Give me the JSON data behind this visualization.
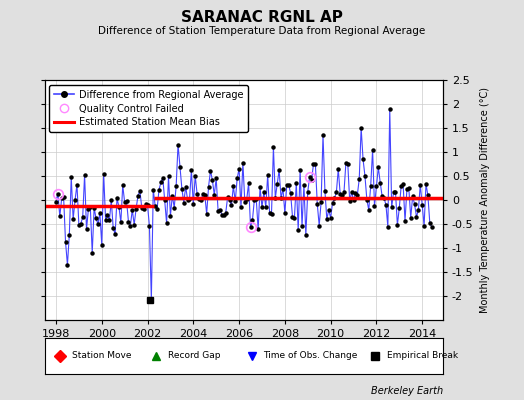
{
  "title": "SARANAC RGNL AP",
  "subtitle": "Difference of Station Temperature Data from Regional Average",
  "ylabel": "Monthly Temperature Anomaly Difference (°C)",
  "xlabel_years": [
    1998,
    2000,
    2002,
    2004,
    2006,
    2008,
    2010,
    2012,
    2014
  ],
  "ylim": [
    -2.5,
    2.5
  ],
  "xlim": [
    1997.5,
    2014.9
  ],
  "yticks": [
    -2,
    -1.5,
    -1,
    -0.5,
    0,
    0.5,
    1,
    1.5,
    2,
    2.5
  ],
  "bias_before": -0.12,
  "bias_after": 0.05,
  "bias_break_year": 2002.3,
  "empirical_break_x": 2002.1,
  "empirical_break_y": -2.08,
  "background_color": "#e0e0e0",
  "plot_bg_color": "#ffffff",
  "line_color": "#4444ff",
  "bias_color": "#ff0000",
  "marker_color": "#000000",
  "qc_color": "#ff88ff",
  "attribution": "Berkeley Earth",
  "grid_color": "#cccccc"
}
